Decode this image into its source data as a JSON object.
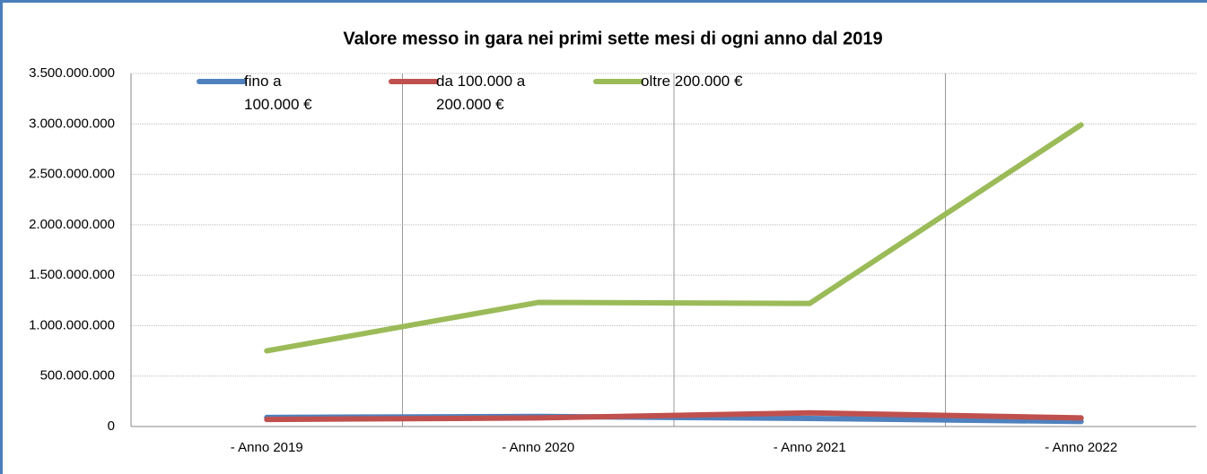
{
  "chart_data": {
    "type": "line",
    "title": "Valore messo in gara nei primi sette mesi di ogni anno dal 2019",
    "categories": [
      "- Anno 2019",
      "- Anno 2020",
      "- Anno 2021",
      "- Anno 2022"
    ],
    "series": [
      {
        "name": "fino a 100.000 €",
        "color": "#4f81bd",
        "values": [
          90000000,
          100000000,
          80000000,
          50000000
        ]
      },
      {
        "name": "da 100.000 a 200.000 €",
        "color": "#c0504d",
        "values": [
          70000000,
          85000000,
          135000000,
          85000000
        ]
      },
      {
        "name": "oltre 200.000 €",
        "color": "#9bbb59",
        "values": [
          750000000,
          1230000000,
          1220000000,
          2990000000
        ]
      }
    ],
    "ylim": [
      0,
      3500000000
    ],
    "yticks": [
      0,
      {
        "value": 500000000,
        "label": "500.000.000"
      },
      {
        "value": 1000000000,
        "label": "1.000.000.000"
      },
      {
        "value": 1500000000,
        "label": "1.500.000.000"
      },
      {
        "value": 2000000000,
        "label": "2.000.000.000"
      },
      {
        "value": 2500000000,
        "label": "2.500.000.000"
      },
      {
        "value": 3000000000,
        "label": "3.000.000.000"
      },
      {
        "value": 3500000000,
        "label": "3.500.000.000"
      }
    ],
    "grid": true,
    "legend": "top"
  }
}
